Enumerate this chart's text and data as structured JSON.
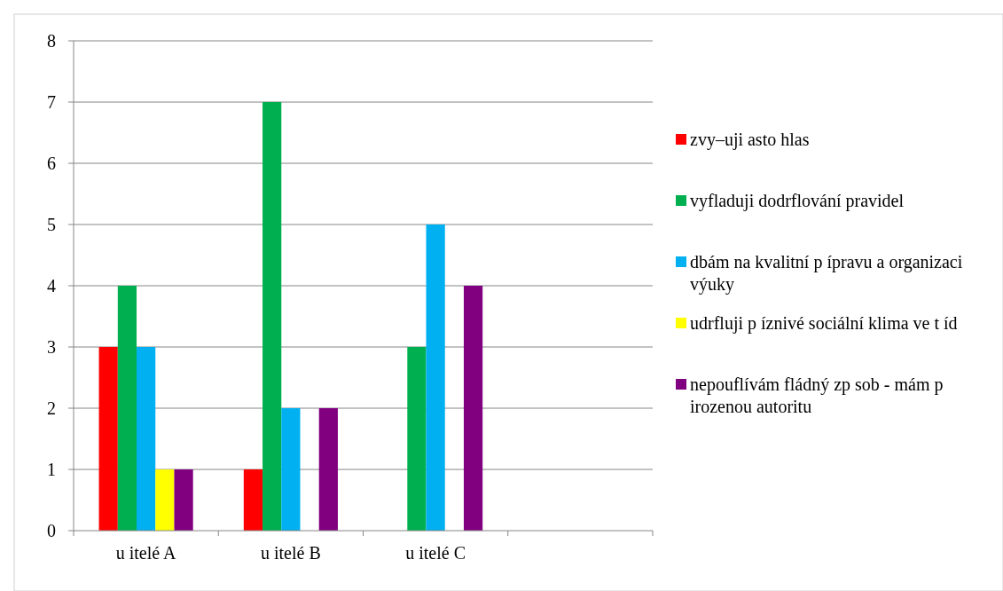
{
  "chart_data": {
    "type": "bar",
    "categories": [
      "u  itelé A",
      "u  itelé B",
      "u  itelé C",
      null
    ],
    "series": [
      {
        "name": "zvy–uji   asto hlas",
        "color": "#ff0000",
        "values": [
          3,
          1,
          0,
          null
        ]
      },
      {
        "name": "vyfladuji dodrflování pravidel",
        "color": "#00b050",
        "values": [
          4,
          7,
          3,
          null
        ]
      },
      {
        "name": "dbám na kvalitní p ípravu a organizaci výuky",
        "color": "#00b0f0",
        "values": [
          3,
          2,
          5,
          null
        ]
      },
      {
        "name": "udrfluji p íznivé sociální klima ve t íd",
        "color": "#ffff00",
        "values": [
          1,
          0,
          0,
          null
        ]
      },
      {
        "name": "nepouflívám fládný zp  sob - mám p irozenou autoritu",
        "color": "#800080",
        "values": [
          1,
          2,
          4,
          null
        ]
      }
    ],
    "ylim": [
      0,
      8
    ],
    "yticks": [
      0,
      1,
      2,
      3,
      4,
      5,
      6,
      7,
      8
    ],
    "grid": "y",
    "legend": "right"
  }
}
